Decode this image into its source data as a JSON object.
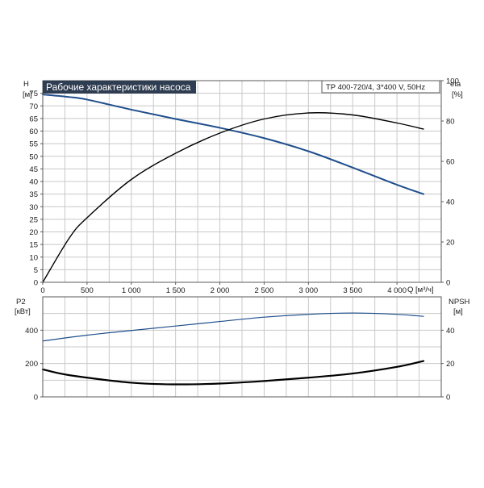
{
  "chart_data": {
    "type": "line",
    "title": "Рабочие характеристики насоса",
    "model": "TP 400-720/4, 3*400 V, 50Hz",
    "x_axis": {
      "label": "Q [м³/ч]",
      "range": [
        0,
        4500
      ],
      "ticks": [
        0,
        500,
        1000,
        1500,
        2000,
        2500,
        3000,
        3500,
        4000
      ],
      "tick_labels": [
        "0",
        "500",
        "1 000",
        "1 500",
        "2 000",
        "2 500",
        "3 000",
        "3 500",
        "4 000"
      ]
    },
    "top_plot": {
      "left_axis": {
        "label": "H",
        "unit": "[м]",
        "range": [
          0,
          80
        ],
        "ticks": [
          0,
          5,
          10,
          15,
          20,
          25,
          30,
          35,
          40,
          45,
          50,
          55,
          60,
          65,
          70,
          75
        ]
      },
      "right_axis": {
        "label": "eta",
        "unit": "[%]",
        "range": [
          0,
          100
        ],
        "ticks": [
          0,
          20,
          40,
          60,
          80,
          100
        ]
      },
      "series": [
        {
          "axis": "left",
          "color": "#1f4e8c",
          "x": [
            0,
            300,
            500,
            1000,
            1500,
            2000,
            2500,
            3000,
            3500,
            4000,
            4300
          ],
          "y": [
            74.5,
            73.5,
            72.5,
            68.5,
            64.8,
            61.3,
            57.2,
            52.0,
            45.5,
            38.7,
            35.0
          ]
        },
        {
          "axis": "right",
          "color": "#000000",
          "x": [
            0,
            300,
            500,
            1000,
            1500,
            2000,
            2500,
            3000,
            3500,
            4000,
            4300
          ],
          "y": [
            0,
            22,
            32,
            51,
            64,
            74,
            81,
            84,
            83,
            79,
            76
          ]
        }
      ]
    },
    "bottom_plot": {
      "left_axis": {
        "label": "P2",
        "unit": "[кВт]",
        "range": [
          0,
          600
        ],
        "ticks": [
          0,
          200,
          400
        ]
      },
      "right_axis": {
        "label": "NPSH",
        "unit": "[м]",
        "range": [
          0,
          60
        ],
        "ticks": [
          0,
          20,
          40
        ]
      },
      "series": [
        {
          "axis": "left",
          "color": "#1f4e8c",
          "x": [
            0,
            500,
            1000,
            1500,
            2000,
            2500,
            3000,
            3500,
            4000,
            4300
          ],
          "y": [
            335,
            370,
            398,
            425,
            452,
            478,
            495,
            503,
            495,
            483
          ]
        },
        {
          "axis": "right",
          "color": "#000000",
          "x": [
            0,
            300,
            1000,
            1500,
            2000,
            2500,
            3000,
            3500,
            4000,
            4300
          ],
          "y": [
            16.5,
            13.0,
            8.5,
            7.5,
            8.0,
            9.5,
            11.5,
            14.0,
            18.0,
            21.5
          ]
        }
      ]
    },
    "grid": true
  }
}
